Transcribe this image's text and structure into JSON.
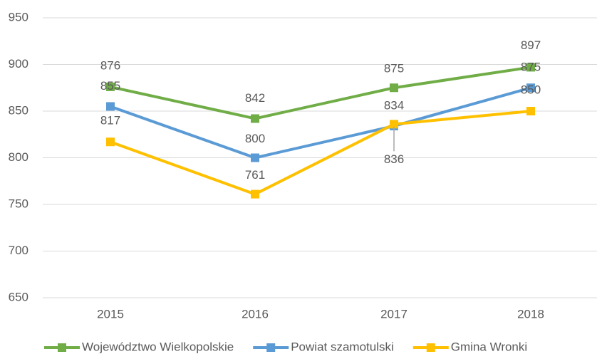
{
  "chart_data": {
    "type": "line",
    "categories": [
      "2015",
      "2016",
      "2017",
      "2018"
    ],
    "series": [
      {
        "name": "Województwo Wielkopolskie",
        "color": "#70ad47",
        "values": [
          876,
          842,
          875,
          897
        ]
      },
      {
        "name": "Powiat szamotulski",
        "color": "#5b9bd5",
        "values": [
          855,
          800,
          834,
          875
        ]
      },
      {
        "name": "Gmina Wronki",
        "color": "#ffc000",
        "values": [
          817,
          761,
          836,
          850
        ]
      }
    ],
    "ylim": [
      650,
      950
    ],
    "yticks": [
      650,
      700,
      750,
      800,
      850,
      900,
      950
    ],
    "grid": true,
    "legend": "bottom"
  }
}
